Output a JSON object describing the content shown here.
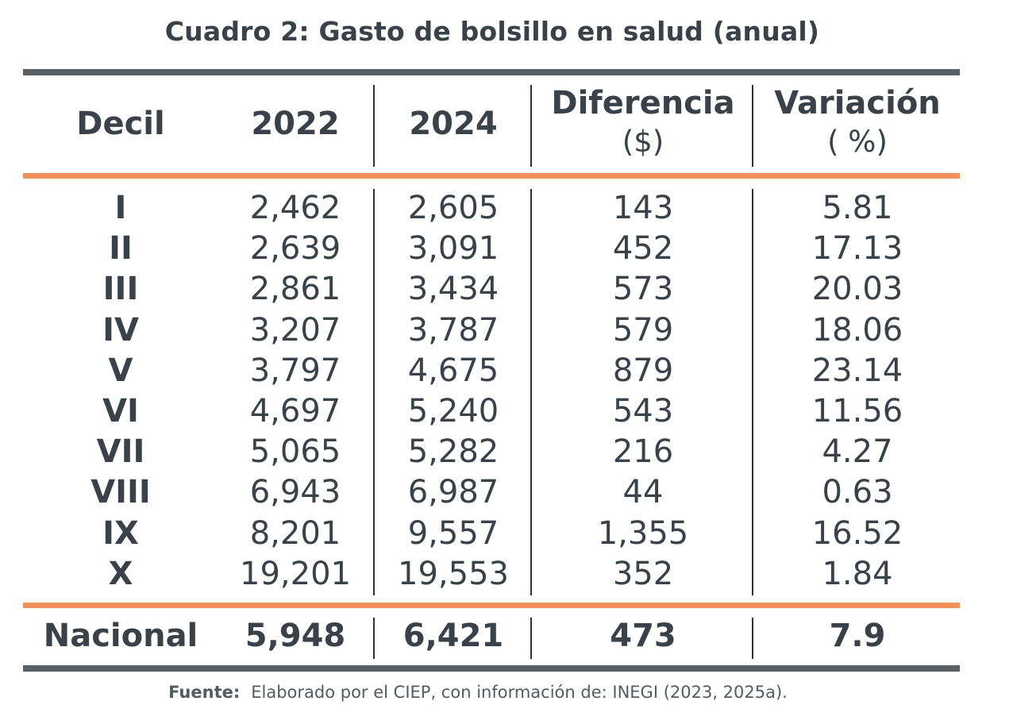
{
  "title": "Cuadro 2: Gasto de bolsillo en salud (anual)",
  "colors": {
    "rule_gray": "#5a5f64",
    "rule_orange": "#f0915c",
    "text": "#3a4149"
  },
  "headers": {
    "decil": "Decil",
    "y2022": "2022",
    "y2024": "2024",
    "diferencia": "Diferencia",
    "diferencia_unit": "($)",
    "variacion": "Variación",
    "variacion_unit": "( %)"
  },
  "rows": [
    {
      "decil": "I",
      "y2022": "2,462",
      "y2024": "2,605",
      "diferencia": "143",
      "variacion": "5.81"
    },
    {
      "decil": "II",
      "y2022": "2,639",
      "y2024": "3,091",
      "diferencia": "452",
      "variacion": "17.13"
    },
    {
      "decil": "III",
      "y2022": "2,861",
      "y2024": "3,434",
      "diferencia": "573",
      "variacion": "20.03"
    },
    {
      "decil": "IV",
      "y2022": "3,207",
      "y2024": "3,787",
      "diferencia": "579",
      "variacion": "18.06"
    },
    {
      "decil": "V",
      "y2022": "3,797",
      "y2024": "4,675",
      "diferencia": "879",
      "variacion": "23.14"
    },
    {
      "decil": "VI",
      "y2022": "4,697",
      "y2024": "5,240",
      "diferencia": "543",
      "variacion": "11.56"
    },
    {
      "decil": "VII",
      "y2022": "5,065",
      "y2024": "5,282",
      "diferencia": "216",
      "variacion": "4.27"
    },
    {
      "decil": "VIII",
      "y2022": "6,943",
      "y2024": "6,987",
      "diferencia": "44",
      "variacion": "0.63"
    },
    {
      "decil": "IX",
      "y2022": "8,201",
      "y2024": "9,557",
      "diferencia": "1,355",
      "variacion": "16.52"
    },
    {
      "decil": "X",
      "y2022": "19,201",
      "y2024": "19,553",
      "diferencia": "352",
      "variacion": "1.84"
    }
  ],
  "total": {
    "decil": "Nacional",
    "y2022": "5,948",
    "y2024": "6,421",
    "diferencia": "473",
    "variacion": "7.9"
  },
  "source_label": "Fuente:",
  "source_text": "Elaborado por el CIEP, con información de: INEGI (2023, 2025a)."
}
